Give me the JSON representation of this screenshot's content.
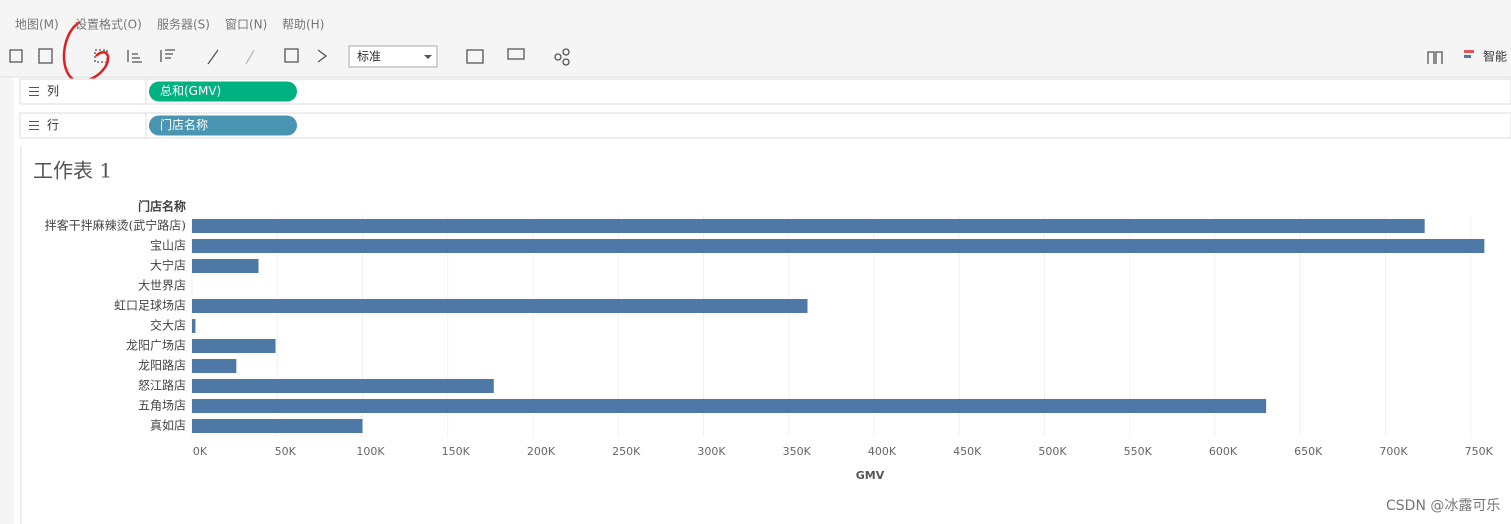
{
  "menu": [
    "地图(M)",
    "设置格式(O)",
    "服务器(S)",
    "窗口(N)",
    "帮助(H)"
  ],
  "toolbar": {
    "fit_select": "标准",
    "smart": "智能"
  },
  "shelves": [
    {
      "label": "列",
      "pill": "总和(GMV)",
      "pill_color": "#00b180"
    },
    {
      "label": "行",
      "pill": "门店名称",
      "pill_color": "#4996b2"
    }
  ],
  "sheet": {
    "title": "工作表 1"
  },
  "chart_data": {
    "type": "bar",
    "orientation": "horizontal",
    "y_title": "门店名称",
    "x_title": "GMV",
    "categories": [
      "拌客干拌麻辣烫(武宁路店)",
      "宝山店",
      "大宁店",
      "大世界店",
      "虹口足球场店",
      "交大店",
      "龙阳广场店",
      "龙阳路店",
      "怒江路店",
      "五角场店",
      "真如店"
    ],
    "values": [
      723000,
      758000,
      39000,
      null,
      361000,
      2000,
      49000,
      26000,
      177000,
      630000,
      100000
    ],
    "color": "#4e79a7",
    "xlim": [
      0,
      766000
    ],
    "xticks": [
      {
        "value": 0,
        "label": "0K"
      },
      {
        "value": 50000,
        "label": "50K"
      },
      {
        "value": 100000,
        "label": "100K"
      },
      {
        "value": 150000,
        "label": "150K"
      },
      {
        "value": 200000,
        "label": "200K"
      },
      {
        "value": 250000,
        "label": "250K"
      },
      {
        "value": 300000,
        "label": "300K"
      },
      {
        "value": 350000,
        "label": "350K"
      },
      {
        "value": 400000,
        "label": "400K"
      },
      {
        "value": 450000,
        "label": "450K"
      },
      {
        "value": 500000,
        "label": "500K"
      },
      {
        "value": 550000,
        "label": "550K"
      },
      {
        "value": 600000,
        "label": "600K"
      },
      {
        "value": 650000,
        "label": "650K"
      },
      {
        "value": 700000,
        "label": "700K"
      },
      {
        "value": 750000,
        "label": "750K"
      }
    ],
    "grid": true
  },
  "watermark": "CSDN @冰露可乐"
}
